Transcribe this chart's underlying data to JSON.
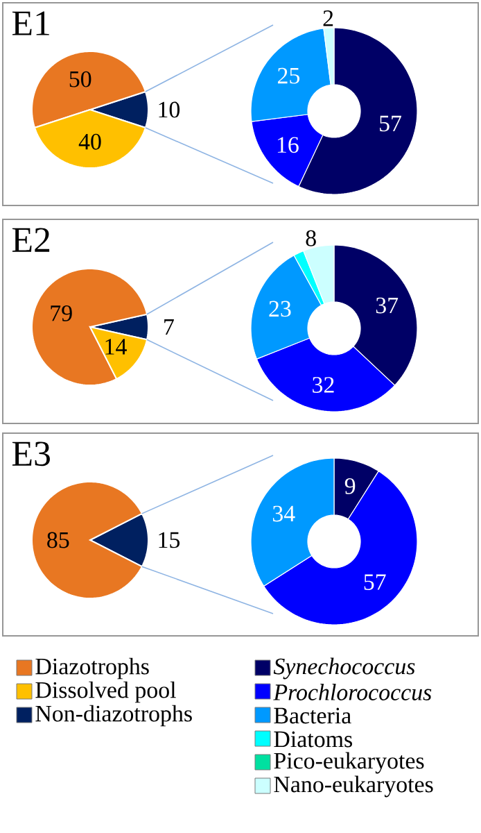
{
  "chart_data": [
    {
      "type": "pie",
      "title": "E1",
      "categories": [
        "Diazotrophs",
        "Dissolved pool",
        "Non-diazotrophs"
      ],
      "values": [
        50,
        40,
        10
      ],
      "colors": [
        "#e87722",
        "#ffc000",
        "#002060"
      ],
      "data_labels": true,
      "legend": "bottom"
    },
    {
      "type": "donut",
      "categories": [
        "*Synechococcus*",
        "*Prochlorococcus*",
        "Bacteria",
        "Diatoms",
        "Pico-eukaryotes",
        "Nano-eukaryotes"
      ],
      "values": [
        57,
        16,
        25,
        null,
        null,
        2
      ],
      "colors": [
        "#000066",
        "#0000ff",
        "#0099ff",
        "#00ffff",
        "#00e0a0",
        "#ccffff"
      ],
      "data_labels": true,
      "legend": "bottom"
    },
    {
      "type": "pie",
      "title": "E2",
      "categories": [
        null,
        null,
        null
      ],
      "values": [
        79,
        14,
        7
      ],
      "colors": [
        "#e87722",
        "#ffc000",
        "#002060"
      ],
      "data_labels": true
    },
    {
      "type": "donut",
      "categories": [
        null,
        null,
        null,
        null,
        null,
        null
      ],
      "values": [
        37,
        32,
        23,
        2,
        null,
        6
      ],
      "value_labels": [
        "37",
        "32",
        "23",
        null,
        null,
        null
      ],
      "annotations": [
        "8"
      ],
      "colors": [
        "#000066",
        "#0000ff",
        "#0099ff",
        "#00ffff",
        "#00e0a0",
        "#ccffff"
      ]
    },
    {
      "type": "pie",
      "title": "E3",
      "categories": [
        null,
        null,
        null
      ],
      "values": [
        85,
        null,
        15
      ],
      "colors": [
        "#e87722",
        "#ffc000",
        "#002060"
      ],
      "data_labels": true
    },
    {
      "type": "donut",
      "categories": [
        null,
        null,
        null,
        null,
        null,
        null
      ],
      "values": [
        9,
        57,
        34,
        null,
        null,
        null
      ],
      "colors": [
        "#000066",
        "#0000ff",
        "#0099ff",
        "#00ffff",
        "#00e0a0",
        "#ccffff"
      ],
      "data_labels": true
    }
  ]
}
